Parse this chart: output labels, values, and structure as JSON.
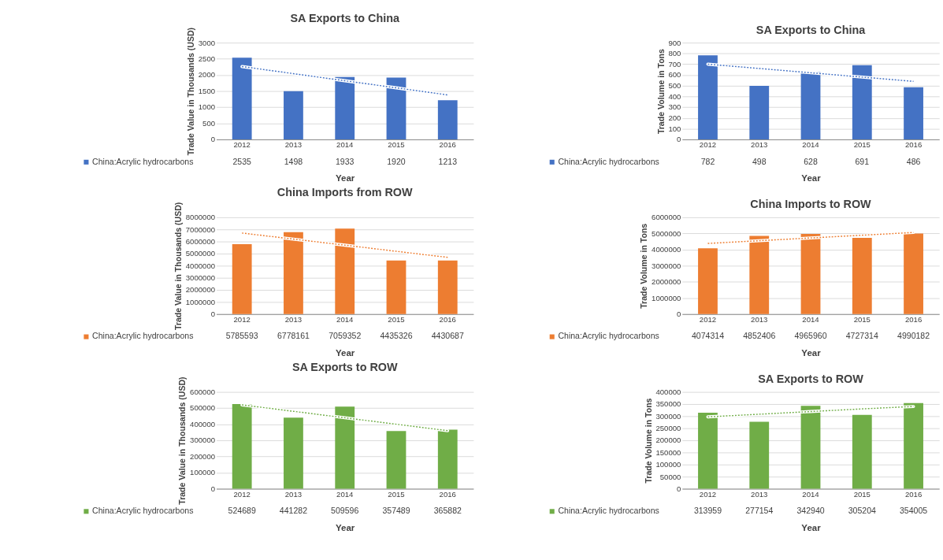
{
  "chart_data": [
    {
      "type": "bar",
      "title": "SA Exports to China",
      "xlabel": "Year",
      "ylabel": "Trade Value in Thousands (USD)",
      "categories": [
        "2012",
        "2013",
        "2014",
        "2015",
        "2016"
      ],
      "ylim": [
        0,
        3000
      ],
      "yticks": [
        0,
        500,
        1000,
        1500,
        2000,
        2500,
        3000
      ],
      "grid": "y",
      "legend": "bottom",
      "series": [
        {
          "name": "China:Acrylic hydrocarbons",
          "color": "#4472c4",
          "values": [
            2535,
            1498,
            1933,
            1920,
            1213
          ],
          "value_labels": [
            "2535",
            "1498",
            "1933",
            "1920",
            "1213"
          ]
        },
        {
          "type": "line",
          "color": "#4472c4",
          "line_style": "dotted",
          "values": [
            2260,
            2040,
            1820,
            1600,
            1380
          ]
        }
      ]
    },
    {
      "type": "bar",
      "title": "SA Exports to China",
      "xlabel": "Year",
      "ylabel": "Trade Volume in Tons",
      "categories": [
        "2012",
        "2013",
        "2014",
        "2015",
        "2016"
      ],
      "ylim": [
        0,
        900
      ],
      "yticks": [
        0,
        100,
        200,
        300,
        400,
        500,
        600,
        700,
        800,
        900
      ],
      "grid": "y",
      "legend": "bottom",
      "series": [
        {
          "name": "China:Acrylic hydrocarbons",
          "color": "#4472c4",
          "values": [
            782,
            498,
            628,
            691,
            486
          ],
          "value_labels": [
            "782",
            "498",
            "628",
            "691",
            "486"
          ]
        },
        {
          "type": "line",
          "color": "#4472c4",
          "line_style": "dotted",
          "values": [
            700,
            660,
            620,
            580,
            540
          ]
        }
      ]
    },
    {
      "type": "bar",
      "title": "China Imports from ROW",
      "xlabel": "Year",
      "ylabel": "Trade Value in Thousands (USD)",
      "categories": [
        "2012",
        "2013",
        "2014",
        "2015",
        "2016"
      ],
      "ylim": [
        0,
        8000000
      ],
      "yticks": [
        0,
        1000000,
        2000000,
        3000000,
        4000000,
        5000000,
        6000000,
        7000000,
        8000000
      ],
      "grid": "y",
      "legend": "bottom",
      "series": [
        {
          "name": "China:Acrylic hydrocarbons",
          "color": "#ed7d31",
          "values": [
            5785593,
            6778161,
            7059352,
            4435326,
            4430687
          ],
          "value_labels": [
            "5785593",
            "6778161",
            "7059352",
            "4435326",
            "4430687"
          ]
        },
        {
          "type": "line",
          "color": "#ed7d31",
          "line_style": "dotted",
          "values": [
            6700000,
            6200000,
            5700000,
            5190000,
            4690000
          ]
        }
      ]
    },
    {
      "type": "bar",
      "title": "China Imports to ROW",
      "xlabel": "Year",
      "ylabel": "Trade Volume in Tons",
      "categories": [
        "2012",
        "2013",
        "2014",
        "2015",
        "2016"
      ],
      "ylim": [
        0,
        6000000
      ],
      "yticks": [
        0,
        1000000,
        2000000,
        3000000,
        4000000,
        5000000,
        6000000
      ],
      "grid": "y",
      "legend": "bottom",
      "series": [
        {
          "name": "China:Acrylic hydrocarbons",
          "color": "#ed7d31",
          "values": [
            4074314,
            4852406,
            4965960,
            4727314,
            4990182
          ],
          "value_labels": [
            "4074314",
            "4852406",
            "4965960",
            "4727314",
            "4990182"
          ]
        },
        {
          "type": "line",
          "color": "#ed7d31",
          "line_style": "dotted",
          "values": [
            4380000,
            4550000,
            4720000,
            4890000,
            5060000
          ]
        }
      ]
    },
    {
      "type": "bar",
      "title": "SA Exports to ROW",
      "xlabel": "Year",
      "ylabel": "Trade Value in Thousands (USD)",
      "categories": [
        "2012",
        "2013",
        "2014",
        "2015",
        "2016"
      ],
      "ylim": [
        0,
        600000
      ],
      "yticks": [
        0,
        100000,
        200000,
        300000,
        400000,
        500000,
        600000
      ],
      "grid": "y",
      "legend": "bottom",
      "series": [
        {
          "name": "China:Acrylic hydrocarbons",
          "color": "#70ad47",
          "values": [
            524689,
            441282,
            509596,
            357489,
            365882
          ],
          "value_labels": [
            "524689",
            "441282",
            "509596",
            "357489",
            "365882"
          ]
        },
        {
          "type": "line",
          "color": "#70ad47",
          "line_style": "dotted",
          "values": [
            520000,
            480000,
            440000,
            400000,
            360000
          ]
        }
      ]
    },
    {
      "type": "bar",
      "title": "SA Exports to ROW",
      "xlabel": "Year",
      "ylabel": "Trade Volume in Tons",
      "categories": [
        "2012",
        "2013",
        "2014",
        "2015",
        "2016"
      ],
      "ylim": [
        0,
        400000
      ],
      "yticks": [
        0,
        50000,
        100000,
        150000,
        200000,
        250000,
        300000,
        350000,
        400000
      ],
      "grid": "y",
      "legend": "bottom",
      "series": [
        {
          "name": "China:Acrylic hydrocarbons",
          "color": "#70ad47",
          "values": [
            313959,
            277154,
            342940,
            305204,
            354005
          ],
          "value_labels": [
            "313959",
            "277154",
            "342940",
            "305204",
            "354005"
          ]
        },
        {
          "type": "line",
          "color": "#70ad47",
          "line_style": "dotted",
          "values": [
            297000,
            308000,
            319000,
            330000,
            340000
          ]
        }
      ]
    }
  ]
}
